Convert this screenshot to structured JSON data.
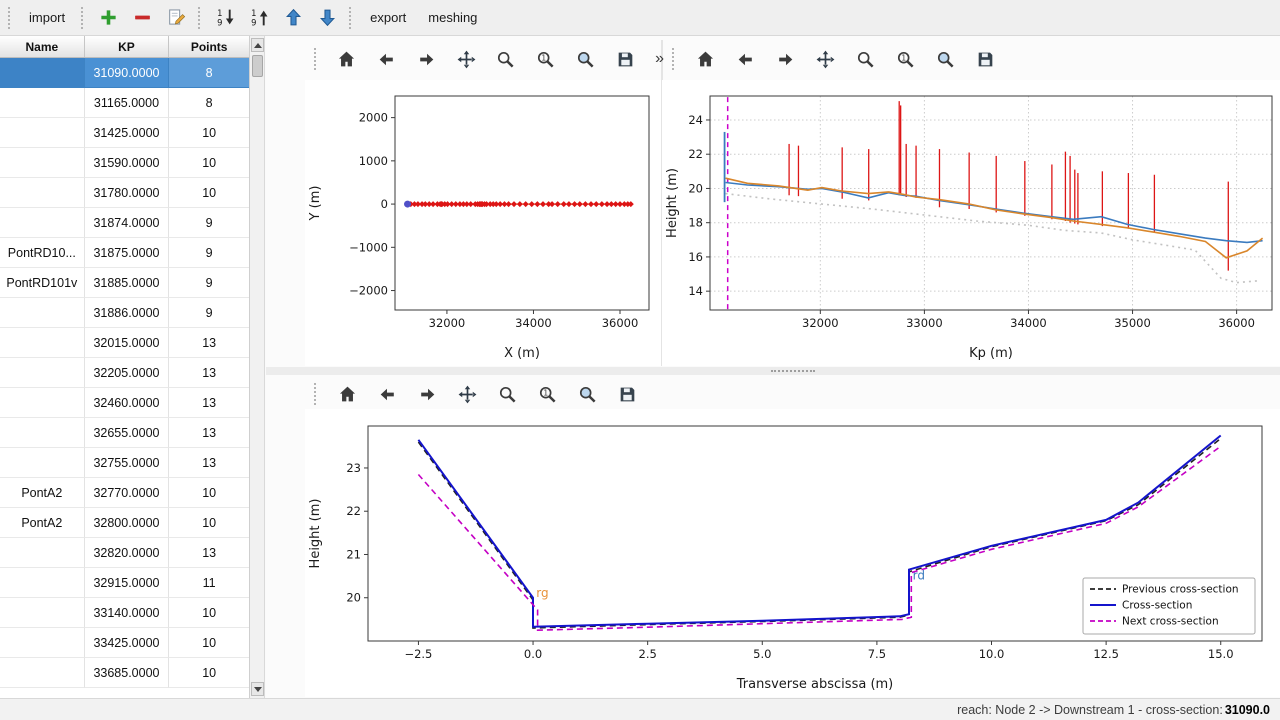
{
  "toolbar": {
    "import_label": "import",
    "export_label": "export",
    "meshing_label": "meshing",
    "icons": [
      "add",
      "remove",
      "edit",
      "sort-ascending",
      "sort-descending",
      "move-up",
      "move-down"
    ]
  },
  "nav_toolbar_icons": [
    "home",
    "back",
    "forward",
    "pan",
    "zoom",
    "zoom-original",
    "zoom-fit",
    "save"
  ],
  "overflow_chevron": "»",
  "table": {
    "columns": [
      "Name",
      "KP",
      "Points"
    ],
    "selected_row": 0,
    "rows": [
      {
        "name": "",
        "kp": "31090.0000",
        "points": "8"
      },
      {
        "name": "",
        "kp": "31165.0000",
        "points": "8"
      },
      {
        "name": "",
        "kp": "31425.0000",
        "points": "10"
      },
      {
        "name": "",
        "kp": "31590.0000",
        "points": "10"
      },
      {
        "name": "",
        "kp": "31780.0000",
        "points": "10"
      },
      {
        "name": "",
        "kp": "31874.0000",
        "points": "9"
      },
      {
        "name": "PontRD10...",
        "kp": "31875.0000",
        "points": "9"
      },
      {
        "name": "PontRD101v",
        "kp": "31885.0000",
        "points": "9"
      },
      {
        "name": "",
        "kp": "31886.0000",
        "points": "9"
      },
      {
        "name": "",
        "kp": "32015.0000",
        "points": "13"
      },
      {
        "name": "",
        "kp": "32205.0000",
        "points": "13"
      },
      {
        "name": "",
        "kp": "32460.0000",
        "points": "13"
      },
      {
        "name": "",
        "kp": "32655.0000",
        "points": "13"
      },
      {
        "name": "",
        "kp": "32755.0000",
        "points": "13"
      },
      {
        "name": "PontA2",
        "kp": "32770.0000",
        "points": "10"
      },
      {
        "name": "PontA2",
        "kp": "32800.0000",
        "points": "10"
      },
      {
        "name": "",
        "kp": "32820.0000",
        "points": "13"
      },
      {
        "name": "",
        "kp": "32915.0000",
        "points": "11"
      },
      {
        "name": "",
        "kp": "33140.0000",
        "points": "10"
      },
      {
        "name": "",
        "kp": "33425.0000",
        "points": "10"
      },
      {
        "name": "",
        "kp": "33685.0000",
        "points": "10"
      }
    ]
  },
  "status_bar": {
    "prefix": "reach: Node 2 -> Downstream 1 - cross-section: ",
    "value": "31090.0"
  },
  "colors": {
    "selection": "#4a91d4",
    "cross_section": "#1414cc",
    "previous_cross_section": "#222222",
    "next_cross_section": "#c400c4",
    "profile_blue": "#3b7bbf",
    "profile_orange": "#d9862b",
    "profile_dotted": "#c2c2c2",
    "marker_red": "#dd1515"
  },
  "chart_data": [
    {
      "type": "scatter",
      "title": "",
      "xlabel": "X (m)",
      "ylabel": "Y (m)",
      "xlim": [
        30800,
        36670
      ],
      "ylim": [
        -2450,
        2500
      ],
      "xticks": [
        32000,
        34000,
        36000
      ],
      "xtick_labels": [
        "32000",
        "34000",
        "36000"
      ],
      "yticks": [
        -2000,
        -1000,
        0,
        1000,
        2000
      ],
      "ytick_labels": [
        "−2000",
        "−1000",
        "0",
        "1000",
        "2000"
      ],
      "grid": false,
      "series": [
        {
          "name": "river-axis",
          "type": "line",
          "color": "#e07b2a",
          "width": 1.4,
          "x": [
            31050,
            36250
          ],
          "y": [
            0,
            0
          ]
        },
        {
          "name": "cross-sections",
          "type": "scatter",
          "marker": "diamond",
          "color": "#dd1515",
          "size": 3,
          "y_const": 0,
          "x": [
            31090,
            31165,
            31250,
            31330,
            31425,
            31500,
            31590,
            31680,
            31780,
            31845,
            31874,
            31886,
            31950,
            32015,
            32110,
            32205,
            32300,
            32380,
            32460,
            32550,
            32655,
            32710,
            32755,
            32770,
            32800,
            32820,
            32870,
            32915,
            33000,
            33070,
            33140,
            33230,
            33330,
            33425,
            33550,
            33685,
            33820,
            33960,
            34090,
            34220,
            34350,
            34430,
            34560,
            34700,
            34820,
            34950,
            35070,
            35200,
            35330,
            35450,
            35580,
            35700,
            35800,
            35900,
            36000,
            36100,
            36180,
            36250
          ]
        },
        {
          "name": "selected-cross-section",
          "type": "scatter",
          "marker": "circle",
          "color": "#5050c8",
          "size": 3.5,
          "x": [
            31090
          ],
          "y": [
            0
          ]
        }
      ]
    },
    {
      "type": "line",
      "title": "",
      "xlabel": "Kp (m)",
      "ylabel": "Height (m)",
      "xlim": [
        30940,
        36340
      ],
      "ylim": [
        12.9,
        25.4
      ],
      "xticks": [
        32000,
        33000,
        34000,
        35000,
        36000
      ],
      "xtick_labels": [
        "32000",
        "33000",
        "34000",
        "35000",
        "36000"
      ],
      "yticks": [
        14,
        16,
        18,
        20,
        22,
        24
      ],
      "ytick_labels": [
        "14",
        "16",
        "18",
        "20",
        "22",
        "24"
      ],
      "grid": true,
      "series": [
        {
          "name": "bank-crests",
          "type": "vlines",
          "color": "#dd1515",
          "width": 1.3,
          "segments": [
            [
              31700,
              19.6,
              22.6
            ],
            [
              31790,
              19.55,
              22.5
            ],
            [
              32210,
              19.4,
              22.4
            ],
            [
              32465,
              19.3,
              22.3
            ],
            [
              32758,
              19.6,
              25.1
            ],
            [
              32772,
              19.6,
              24.85
            ],
            [
              32825,
              19.5,
              22.6
            ],
            [
              32920,
              19.45,
              22.5
            ],
            [
              33145,
              18.9,
              22.3
            ],
            [
              33430,
              18.8,
              22.1
            ],
            [
              33690,
              18.6,
              21.9
            ],
            [
              33965,
              18.4,
              21.6
            ],
            [
              34225,
              18.2,
              21.4
            ],
            [
              34355,
              18.1,
              22.15
            ],
            [
              34400,
              18.0,
              21.9
            ],
            [
              34445,
              17.95,
              21.1
            ],
            [
              34475,
              17.9,
              20.9
            ],
            [
              34710,
              17.8,
              21.0
            ],
            [
              34960,
              17.65,
              20.9
            ],
            [
              35210,
              17.45,
              20.8
            ],
            [
              35920,
              15.2,
              20.4
            ]
          ]
        },
        {
          "name": "selected-kp-marker",
          "type": "vlines",
          "color": "#cc00cc",
          "width": 1.5,
          "dash": "5,4",
          "segments": [
            [
              31110,
              12.95,
              25.35
            ]
          ]
        },
        {
          "name": "selected-bank-marker",
          "type": "vlines",
          "color": "#3b7bbf",
          "width": 1.8,
          "segments": [
            [
              31080,
              19.2,
              23.3
            ]
          ]
        },
        {
          "name": "bottom-profile",
          "type": "line",
          "color": "#c2c2c2",
          "width": 1.6,
          "dash": "2,4",
          "x": [
            31090,
            31500,
            32000,
            32500,
            33000,
            33500,
            34000,
            34350,
            34700,
            35000,
            35300,
            35600,
            35850,
            36000,
            36200
          ],
          "y": [
            19.7,
            19.4,
            19.1,
            18.8,
            18.45,
            18.1,
            17.85,
            17.55,
            17.4,
            17.0,
            16.7,
            16.4,
            14.75,
            14.5,
            14.6
          ]
        },
        {
          "name": "left-bank-profile",
          "type": "line",
          "color": "#3b7bbf",
          "width": 1.6,
          "x": [
            31090,
            31300,
            31600,
            31880,
            32015,
            32205,
            32460,
            32655,
            32800,
            32915,
            33140,
            33425,
            33685,
            33960,
            34220,
            34430,
            34700,
            34950,
            35200,
            35450,
            35700,
            35900,
            36100,
            36250
          ],
          "y": [
            20.35,
            20.2,
            20.1,
            19.95,
            20.0,
            19.8,
            19.45,
            19.75,
            19.6,
            19.55,
            19.3,
            19.05,
            18.8,
            18.55,
            18.35,
            18.2,
            18.35,
            17.9,
            17.6,
            17.35,
            17.1,
            16.95,
            16.85,
            16.95
          ]
        },
        {
          "name": "right-bank-profile",
          "type": "line",
          "color": "#d9862b",
          "width": 1.6,
          "x": [
            31090,
            31300,
            31600,
            31880,
            32015,
            32205,
            32460,
            32655,
            32800,
            32915,
            33140,
            33425,
            33685,
            33960,
            34220,
            34430,
            34700,
            34950,
            35200,
            35450,
            35700,
            35900,
            36100,
            36250
          ],
          "y": [
            20.6,
            20.3,
            20.15,
            19.9,
            20.05,
            19.85,
            19.7,
            19.8,
            19.65,
            19.5,
            19.35,
            19.1,
            18.75,
            18.5,
            18.3,
            18.1,
            17.9,
            17.7,
            17.45,
            17.2,
            16.9,
            15.95,
            16.35,
            17.1
          ]
        }
      ]
    },
    {
      "type": "line",
      "title": "",
      "xlabel": "Transverse abscissa (m)",
      "ylabel": "Height (m)",
      "xlim": [
        -3.6,
        15.9
      ],
      "ylim": [
        19.0,
        23.97
      ],
      "xticks": [
        -2.5,
        0.0,
        2.5,
        5.0,
        7.5,
        10.0,
        12.5,
        15.0
      ],
      "xtick_labels": [
        "−2.5",
        "0.0",
        "2.5",
        "5.0",
        "7.5",
        "10.0",
        "12.5",
        "15.0"
      ],
      "yticks": [
        20,
        21,
        22,
        23
      ],
      "ytick_labels": [
        "20",
        "21",
        "22",
        "23"
      ],
      "grid": false,
      "series": [
        {
          "name": "Previous cross-section",
          "type": "line",
          "color": "#222222",
          "width": 1.6,
          "dash": "6,4",
          "x": [
            -2.5,
            0.0,
            0.0,
            2.5,
            5.0,
            8.0,
            8.2,
            8.2,
            10.0,
            12.5,
            13.2,
            15.0
          ],
          "y": [
            23.6,
            19.95,
            19.3,
            19.38,
            19.45,
            19.55,
            19.6,
            20.6,
            21.18,
            21.78,
            22.15,
            23.68
          ]
        },
        {
          "name": "Cross-section",
          "type": "line",
          "color": "#1414cc",
          "width": 2,
          "x": [
            -2.5,
            0.0,
            0.0,
            2.5,
            5.0,
            8.0,
            8.2,
            8.2,
            10.0,
            12.5,
            13.2,
            15.0
          ],
          "y": [
            23.65,
            20.0,
            19.33,
            19.4,
            19.47,
            19.57,
            19.62,
            20.65,
            21.2,
            21.8,
            22.2,
            23.75
          ]
        },
        {
          "name": "Next cross-section",
          "type": "line",
          "color": "#c400c4",
          "width": 1.6,
          "dash": "6,4",
          "x": [
            -2.5,
            0.1,
            0.1,
            2.5,
            5.0,
            8.05,
            8.25,
            8.25,
            10.0,
            12.5,
            13.2,
            15.0
          ],
          "y": [
            22.85,
            19.72,
            19.25,
            19.32,
            19.4,
            19.5,
            19.55,
            20.58,
            21.12,
            21.72,
            22.1,
            23.5
          ]
        }
      ],
      "annotations": [
        {
          "text": "rg",
          "x": 0.07,
          "y": 20.02,
          "color": "#e8923a"
        },
        {
          "text": "rd",
          "x": 8.28,
          "y": 20.42,
          "color": "#3b7bbf"
        }
      ],
      "legend": {
        "width": 172,
        "entries": [
          {
            "label": "Previous cross-section",
            "color": "#222222",
            "dash": "5,3"
          },
          {
            "label": "Cross-section",
            "color": "#1414cc"
          },
          {
            "label": "Next cross-section",
            "color": "#c400c4",
            "dash": "5,3"
          }
        ]
      }
    }
  ]
}
